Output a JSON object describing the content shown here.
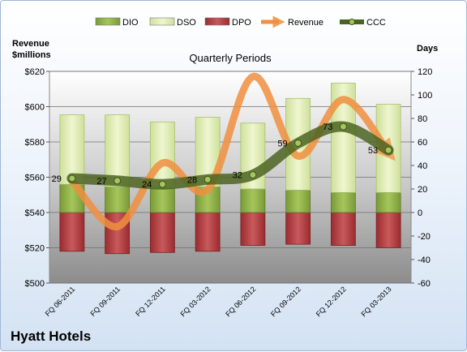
{
  "chart_data": {
    "type": "bar",
    "company": "Hyatt Hotels",
    "title": "Quarterly Periods",
    "ylabel_left": "Revenue\n$millions",
    "ylabel_right": "Days",
    "yleft": {
      "min": 500,
      "max": 620,
      "ticks": [
        "$500",
        "$520",
        "$540",
        "$560",
        "$580",
        "$600",
        "$620"
      ]
    },
    "yright": {
      "min": -60,
      "max": 120,
      "ticks": [
        "-60",
        "-40",
        "-20",
        "0",
        "20",
        "40",
        "60",
        "80",
        "100",
        "120"
      ]
    },
    "categories": [
      "FQ 06-2011",
      "FQ 09-2011",
      "FQ 12-2011",
      "FQ 03-2012",
      "FQ 06-2012",
      "FQ 09-2012",
      "FQ 12-2012",
      "FQ 03-2013"
    ],
    "legend": [
      "DIO",
      "DSO",
      "DPO",
      "Revenue",
      "CCC"
    ],
    "series": [
      {
        "name": "DIO",
        "values": [
          24,
          22,
          21,
          22,
          20,
          19,
          17,
          17
        ]
      },
      {
        "name": "DSO",
        "values": [
          59,
          61,
          56,
          59,
          56,
          78,
          93,
          75
        ]
      },
      {
        "name": "DPO",
        "values": [
          -33,
          -35,
          -34,
          -33,
          -28,
          -27,
          -28,
          -30
        ]
      },
      {
        "name": "Revenue",
        "values": [
          558,
          532,
          568,
          553,
          617,
          572,
          604,
          574
        ]
      },
      {
        "name": "CCC",
        "values": [
          29,
          27,
          24,
          28,
          32,
          59,
          73,
          53
        ],
        "labels": [
          "29",
          "27",
          "24",
          "28",
          "32",
          "59",
          "73",
          "53"
        ]
      }
    ],
    "colors": {
      "DIO": "#8fb04a",
      "DSO": "#dceab2",
      "DPO": "#b23a3e",
      "Revenue": "#f09040",
      "CCC": "#5e7a30"
    }
  }
}
